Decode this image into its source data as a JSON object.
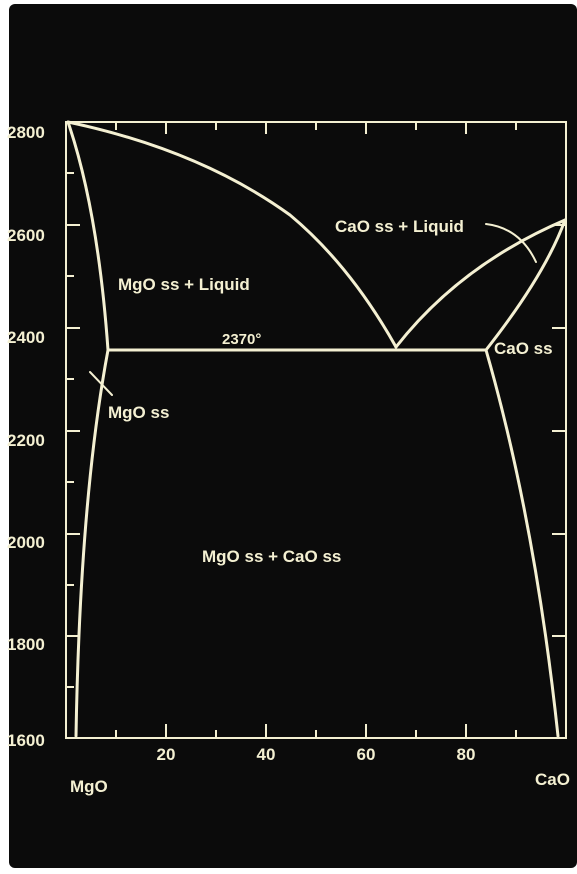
{
  "diagram": {
    "y_ticks": [
      "2800",
      "2600",
      "2400",
      "2200",
      "2000",
      "1800",
      "1600"
    ],
    "x_ticks": [
      "20",
      "40",
      "60",
      "80"
    ],
    "left_component": "MgO",
    "right_component": "CaO",
    "regions": {
      "mgo_liquid": "MgO ss + Liquid",
      "cao_liquid": "CaO ss + Liquid",
      "mgo_ss": "MgO ss",
      "cao_ss": "CaO ss",
      "two_solid": "MgO ss +  CaO ss"
    },
    "eutectic_label": "2370°",
    "colors": {
      "background": "#0b0b0b",
      "lines": "#f4f0d2"
    }
  }
}
